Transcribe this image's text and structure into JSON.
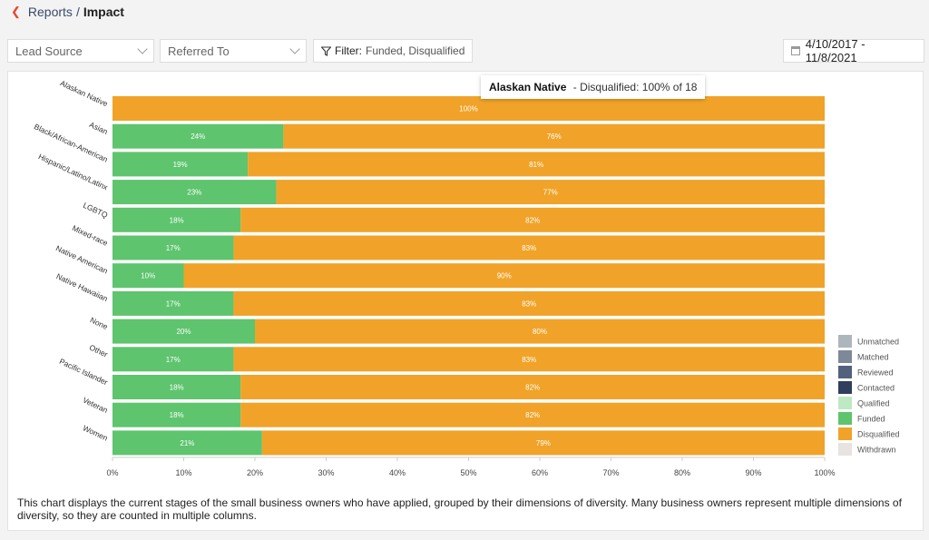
{
  "breadcrumb": {
    "parent": "Reports",
    "separator": "/",
    "current": "Impact"
  },
  "filters": {
    "lead_source": "Lead Source",
    "referred_to": "Referred To",
    "filter_label": "Filter:",
    "filter_values": "Funded, Disqualified",
    "date_range": "4/10/2017 - 11/8/2021"
  },
  "tooltip": {
    "category": "Alaskan Native",
    "text": "- Disqualified: 100% of 18"
  },
  "chart_data": {
    "type": "bar",
    "orientation": "horizontal",
    "stacked": true,
    "categories": [
      "Alaskan Native",
      "Asian",
      "Black/African-American",
      "Hispanic/Latino/Latinx",
      "LGBTQ",
      "Mixed-race",
      "Native American",
      "Native Hawaiian",
      "None",
      "Other",
      "Pacific Islander",
      "Veteran",
      "Women"
    ],
    "series": [
      {
        "name": "Funded",
        "color": "#5ec46e",
        "values": [
          0,
          24,
          19,
          23,
          18,
          17,
          10,
          17,
          20,
          17,
          18,
          18,
          21
        ]
      },
      {
        "name": "Disqualified",
        "color": "#f0a328",
        "values": [
          100,
          76,
          81,
          77,
          82,
          83,
          90,
          83,
          80,
          83,
          82,
          82,
          79
        ]
      }
    ],
    "xlim": [
      0,
      100
    ],
    "x_ticks": [
      "0%",
      "10%",
      "20%",
      "30%",
      "40%",
      "50%",
      "60%",
      "70%",
      "80%",
      "90%",
      "100%"
    ],
    "legend": [
      {
        "name": "Unmatched",
        "color": "#adb5bd"
      },
      {
        "name": "Matched",
        "color": "#7d8899"
      },
      {
        "name": "Reviewed",
        "color": "#52627d"
      },
      {
        "name": "Contacted",
        "color": "#2f3f5c"
      },
      {
        "name": "Qualified",
        "color": "#bde9c3"
      },
      {
        "name": "Funded",
        "color": "#5ec46e"
      },
      {
        "name": "Disqualified",
        "color": "#f0a328"
      },
      {
        "name": "Withdrawn",
        "color": "#e6e3e1"
      }
    ],
    "legend_position": "right"
  },
  "caption": "This chart displays the current stages of the small business owners who have applied, grouped by their dimensions of diversity. Many business owners represent multiple dimensions of diversity, so they are counted in multiple columns."
}
